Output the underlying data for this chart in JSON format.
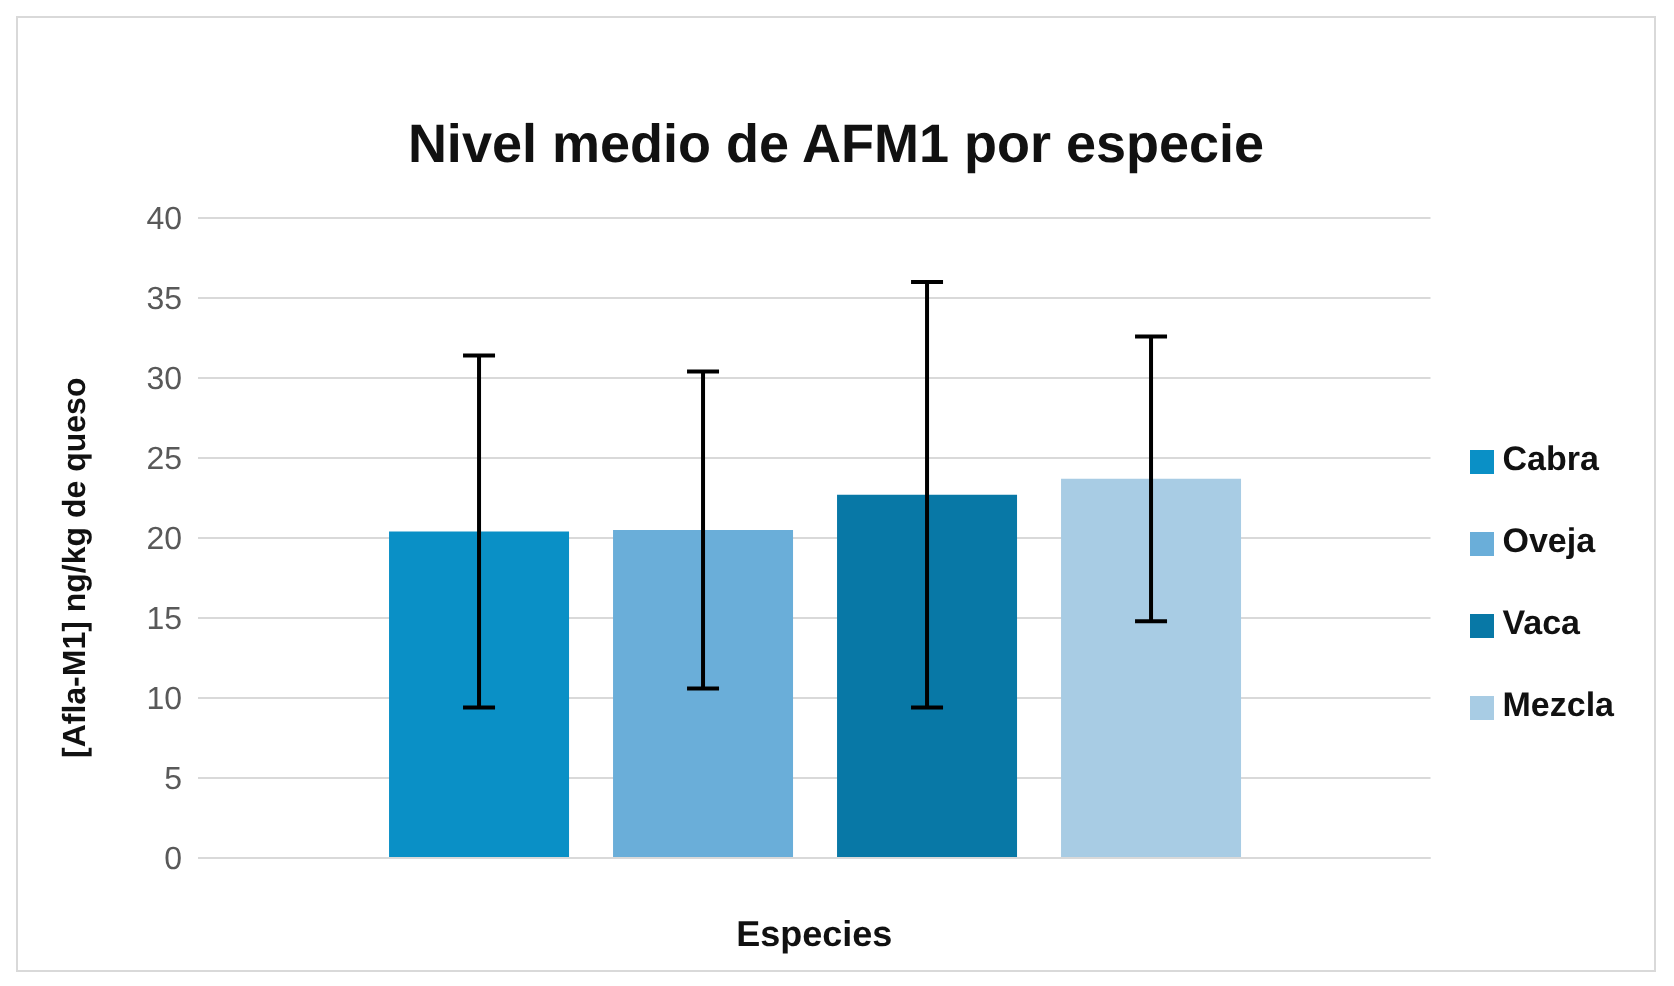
{
  "chart_data": {
    "type": "bar",
    "title": "Nivel medio de AFM1 por especie",
    "xlabel": "Especies",
    "ylabel": "[Afla-M1] ng/kg de queso",
    "categories": [
      null
    ],
    "series": [
      {
        "name": "Cabra",
        "color": "#0a90c6",
        "values": [
          20.4
        ],
        "errors": [
          11
        ]
      },
      {
        "name": "Oveja",
        "color": "#6aaed9",
        "values": [
          20.5
        ],
        "errors": [
          9.9
        ]
      },
      {
        "name": "Vaca",
        "color": "#0878a6",
        "values": [
          22.7
        ],
        "errors": [
          13.3
        ]
      },
      {
        "name": "Mezcla",
        "color": "#a8cce4",
        "values": [
          23.7
        ],
        "errors": [
          8.9
        ]
      }
    ],
    "ylim": [
      0,
      40
    ],
    "yticks": [
      0,
      5,
      10,
      15,
      20,
      25,
      30,
      35,
      40
    ],
    "grid": "y",
    "legend": "right"
  }
}
